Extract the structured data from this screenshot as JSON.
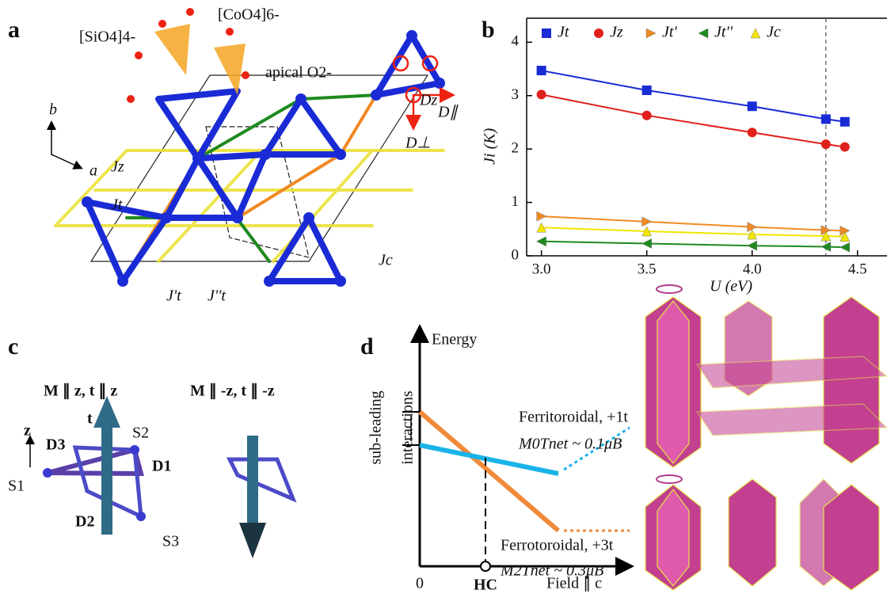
{
  "panel_a": {
    "label": "a",
    "texts": [
      "[SiO4]4-",
      "[CoO4]6-",
      "apical O2-",
      "b",
      "a",
      "Jz",
      "Jt",
      "J't",
      "J''t",
      "Jc",
      "Dz",
      "D∥",
      "D⊥"
    ]
  },
  "chart_data": {
    "label": "b",
    "type": "line",
    "ylabel": "Ji (K)",
    "xlabel": "U (eV)",
    "x": [
      3.0,
      3.5,
      4.0,
      4.35,
      4.44
    ],
    "xlim": [
      2.93,
      4.64
    ],
    "xticks": [
      {
        "value": 3,
        "label": "3.0"
      },
      3.5,
      {
        "value": 4,
        "label": "4.0"
      },
      4.5
    ],
    "ylim": [
      0,
      4.45
    ],
    "yticks": [
      0,
      1,
      2,
      3,
      4
    ],
    "vline": 4.35,
    "series": [
      {
        "name": "Jt",
        "color": "#1a2bd6",
        "marker": "square",
        "values": [
          3.47,
          3.1,
          2.8,
          2.56,
          2.51
        ]
      },
      {
        "name": "Jz",
        "color": "#e0201b",
        "marker": "circle",
        "values": [
          3.02,
          2.63,
          2.31,
          2.09,
          2.04
        ]
      },
      {
        "name": "Jt'",
        "color": "#f08a24",
        "marker": "triangle-right",
        "values": [
          0.74,
          0.64,
          0.54,
          0.48,
          0.47
        ]
      },
      {
        "name": "Jt''",
        "color": "#1f8a1f",
        "marker": "triangle-left",
        "values": [
          0.27,
          0.23,
          0.19,
          0.17,
          0.16
        ]
      },
      {
        "name": "Jc",
        "color": "#f2e600",
        "marker": "triangle-up",
        "values": [
          0.53,
          0.46,
          0.4,
          0.37,
          0.36
        ]
      }
    ]
  },
  "panel_c": {
    "label": "c",
    "texts": [
      "M ∥ z, t ∥ z",
      "M ∥ -z, t ∥ -z",
      "z",
      "t",
      "S1",
      "S2",
      "S3",
      "D1",
      "D2",
      "D3"
    ]
  },
  "panel_d": {
    "label": "d",
    "texts": [
      "Energy",
      "sub-leading",
      "interactions",
      "Ferritoroidal, +1t",
      "M0Tnet ~ 0.1μB",
      "Ferrotoroidal, +3t",
      "M2Tnet ~ 0.3μB",
      "0",
      "HC",
      "Field ∥ c"
    ]
  }
}
